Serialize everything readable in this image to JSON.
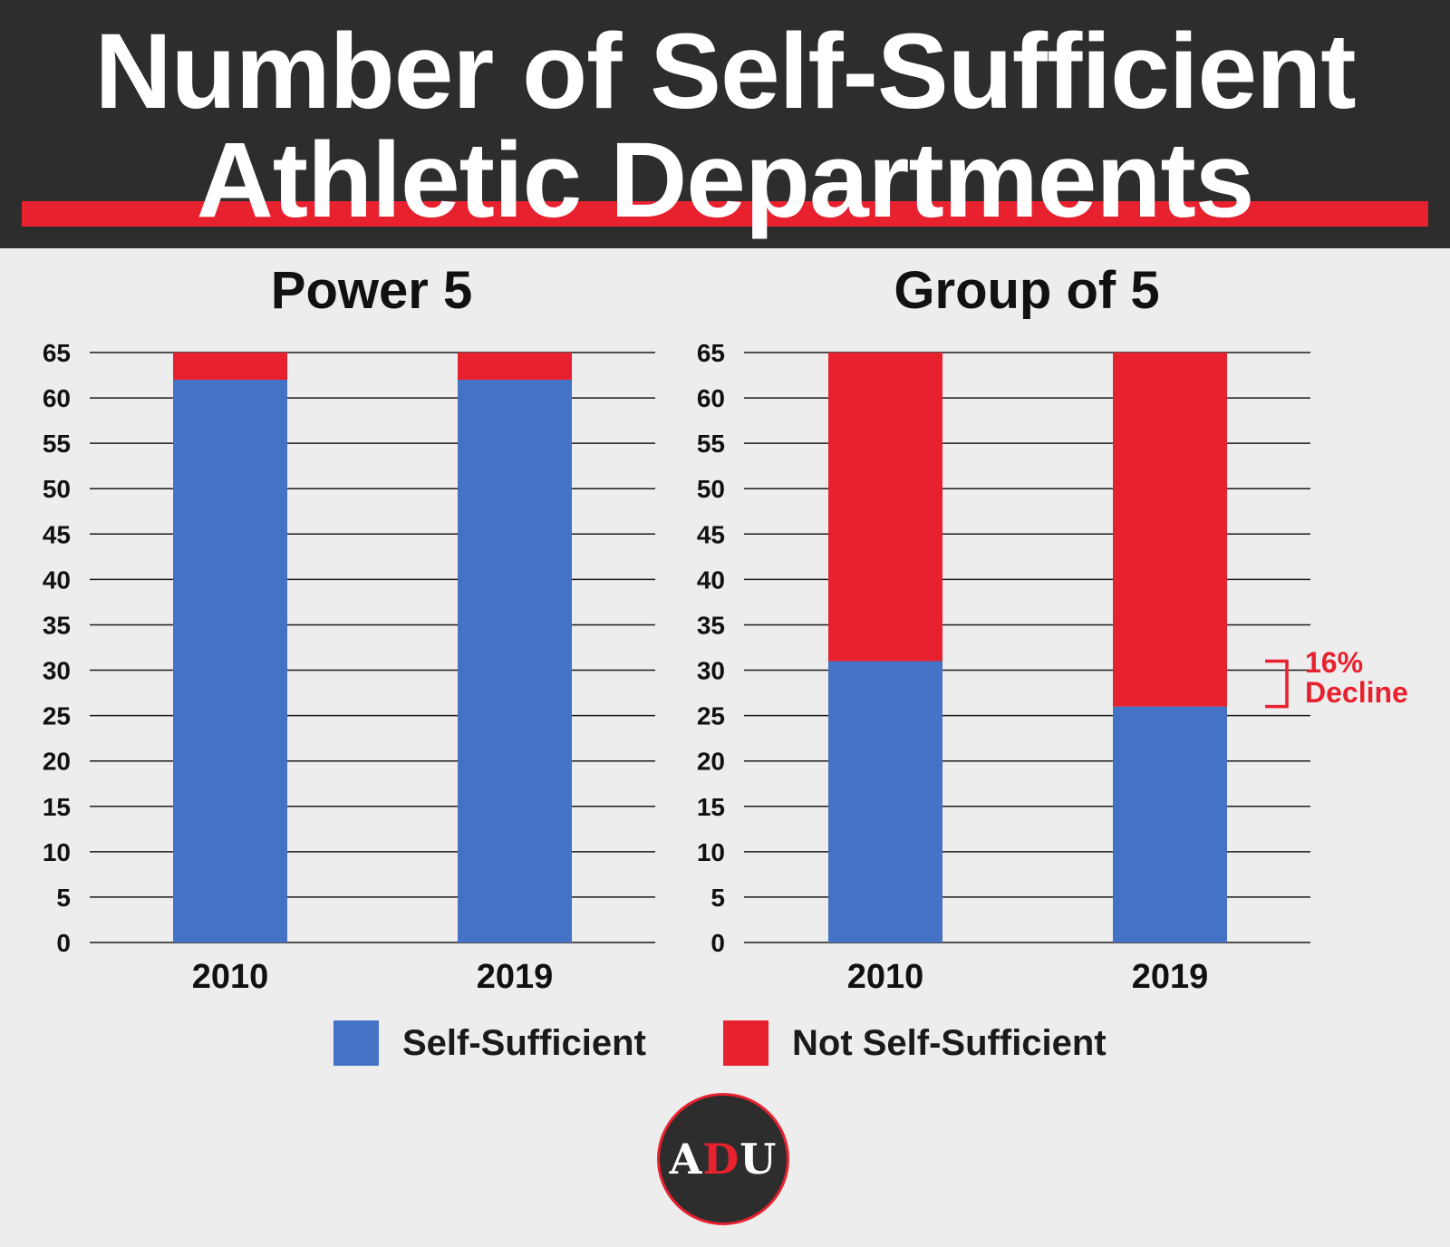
{
  "header": {
    "title_line1": "Number of Self-Sufficient",
    "title_line2": "Athletic Departments"
  },
  "colors": {
    "self_sufficient": "#4472c4",
    "not_self_sufficient": "#e8212f",
    "header_bg": "#2d2d2d",
    "background": "#ededed"
  },
  "chart_data": [
    {
      "type": "bar",
      "stacked": true,
      "title": "Power 5",
      "categories": [
        "2010",
        "2019"
      ],
      "series": [
        {
          "name": "Self-Sufficient",
          "values": [
            62,
            62
          ]
        },
        {
          "name": "Not Self-Sufficient",
          "values": [
            3,
            3
          ]
        }
      ],
      "ylim": [
        0,
        65
      ],
      "yticks": [
        0,
        5,
        10,
        15,
        20,
        25,
        30,
        35,
        40,
        45,
        50,
        55,
        60,
        65
      ],
      "grid": true
    },
    {
      "type": "bar",
      "stacked": true,
      "title": "Group of 5",
      "categories": [
        "2010",
        "2019"
      ],
      "series": [
        {
          "name": "Self-Sufficient",
          "values": [
            31,
            26
          ]
        },
        {
          "name": "Not Self-Sufficient",
          "values": [
            34,
            39
          ]
        }
      ],
      "ylim": [
        0,
        65
      ],
      "yticks": [
        0,
        5,
        10,
        15,
        20,
        25,
        30,
        35,
        40,
        45,
        50,
        55,
        60,
        65
      ],
      "grid": true,
      "annotation": {
        "line1": "16%",
        "line2": "Decline",
        "from": 31,
        "to": 26
      }
    }
  ],
  "legend": [
    {
      "label": "Self-Sufficient"
    },
    {
      "label": "Not Self-Sufficient"
    }
  ],
  "logo": {
    "left": "A",
    "middle": "D",
    "right": "U"
  }
}
